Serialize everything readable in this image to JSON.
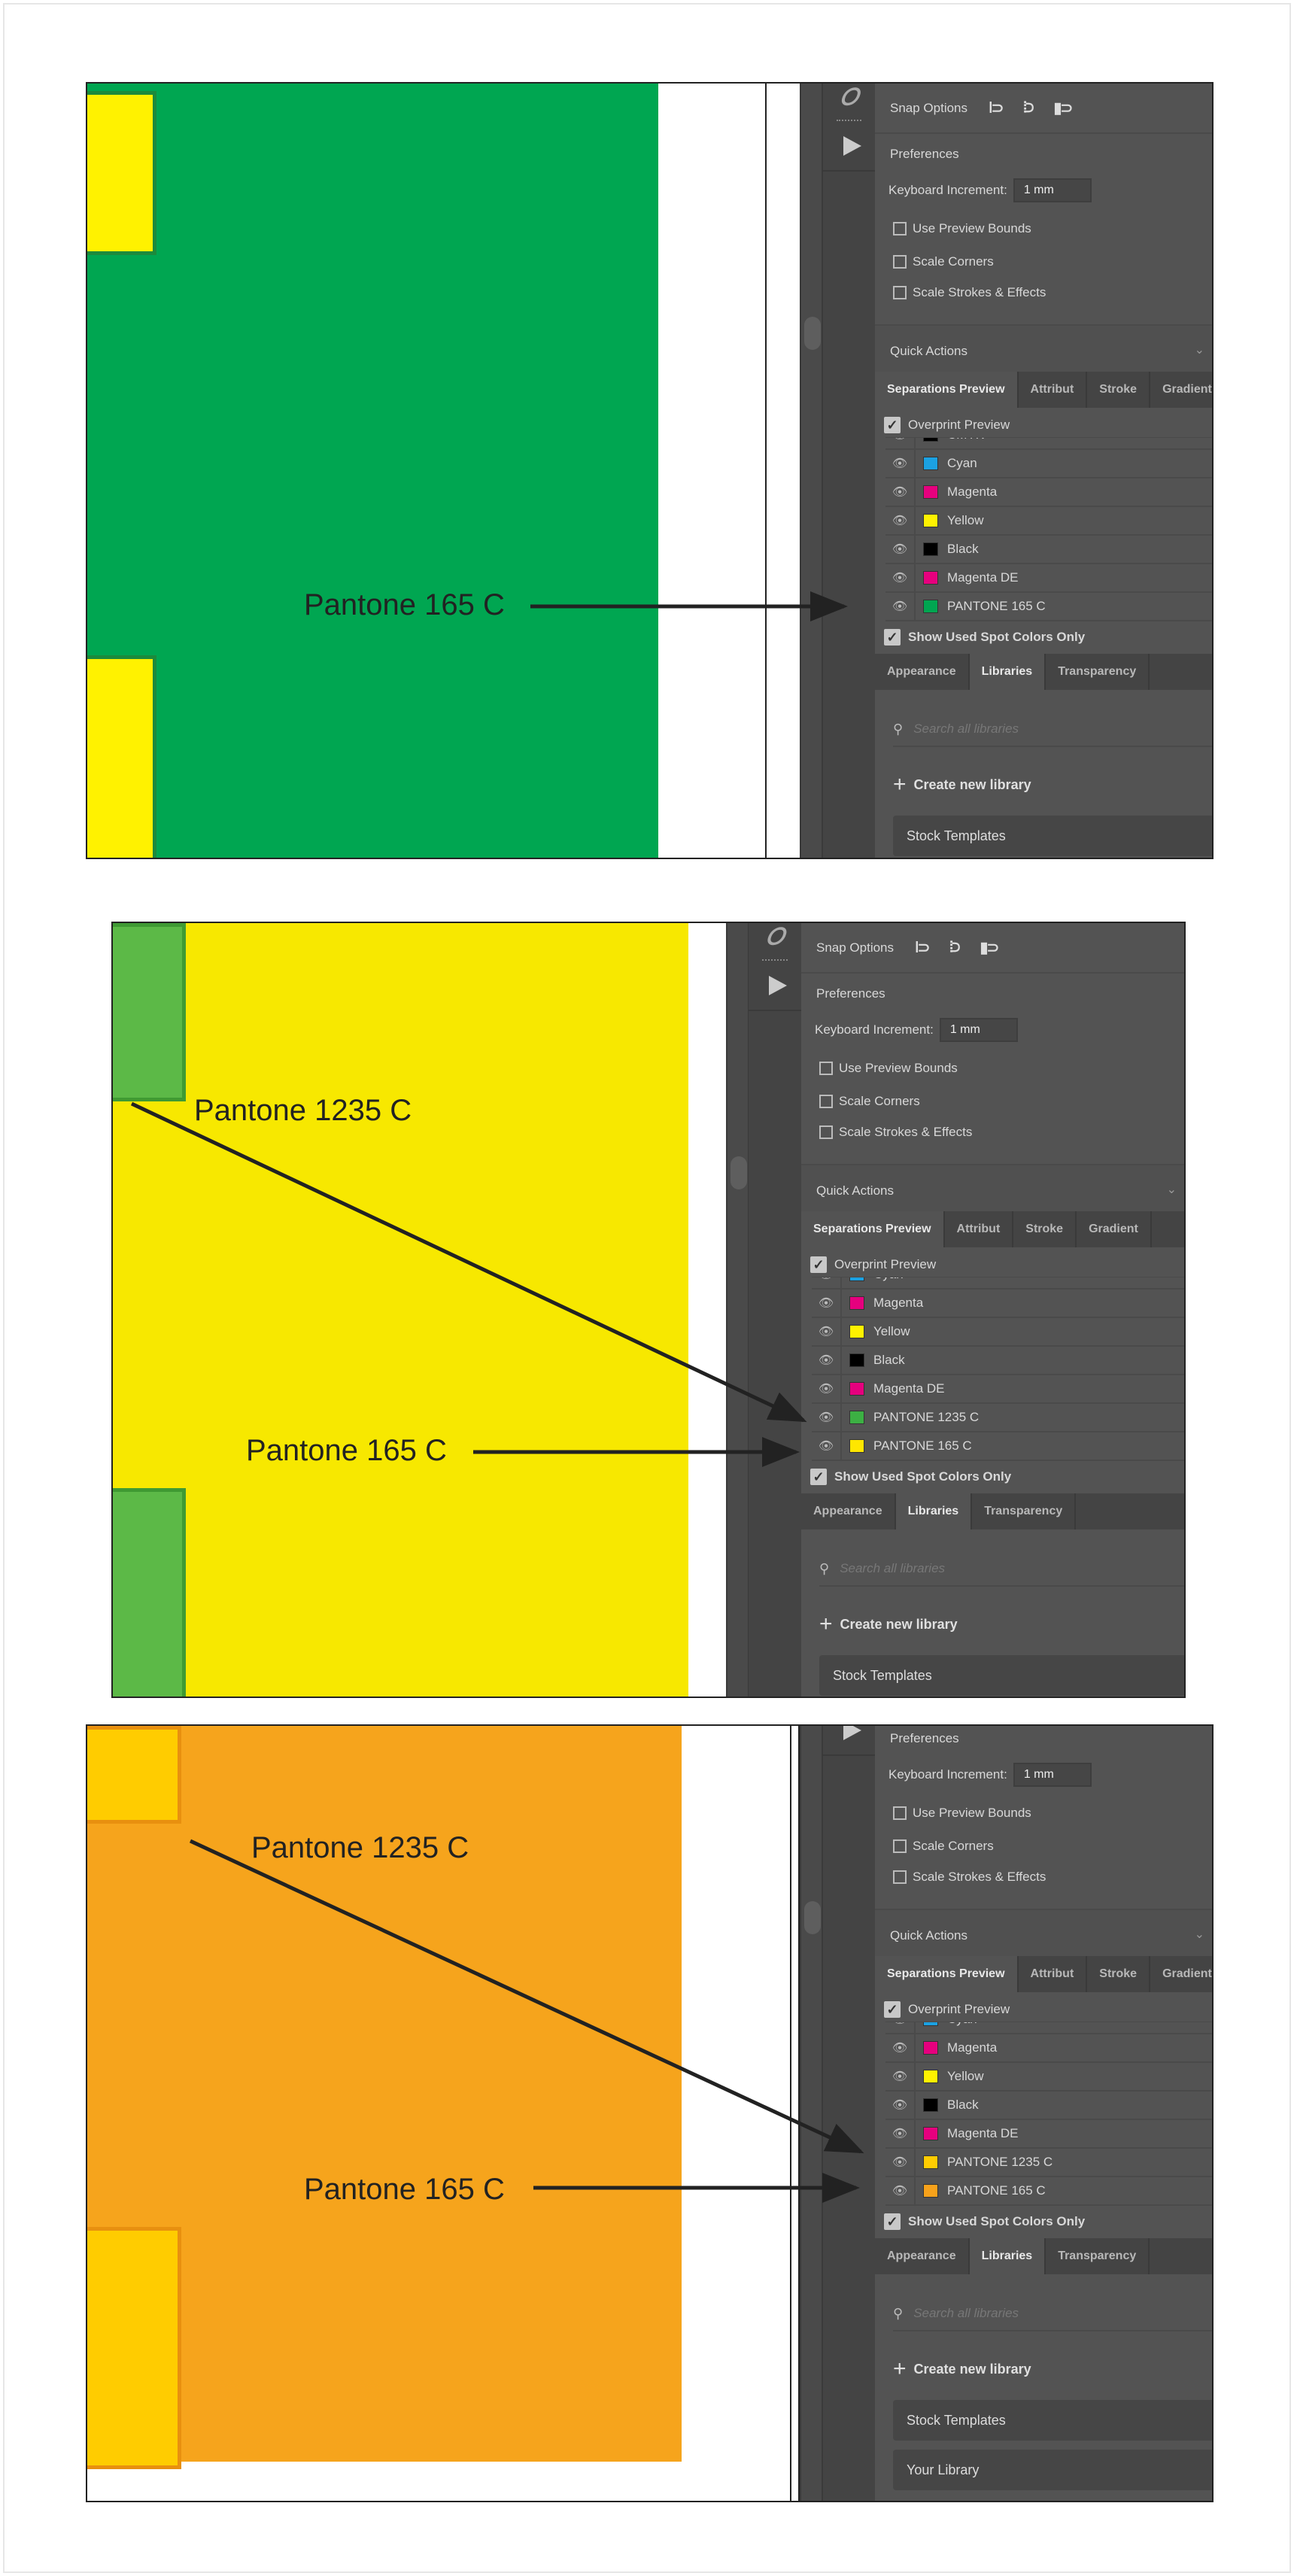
{
  "ui": {
    "snap_options": "Snap Options",
    "preferences": "Preferences",
    "keyboard_increment_label": "Keyboard Increment:",
    "keyboard_increment_value": "1 mm",
    "use_preview_bounds": "Use Preview Bounds",
    "scale_corners": "Scale Corners",
    "scale_strokes_effects": "Scale Strokes & Effects",
    "quick_actions": "Quick Actions",
    "tabs_top": [
      "Separations Preview",
      "Attribut",
      "Stroke",
      "Gradient"
    ],
    "overprint_preview": "Overprint Preview",
    "show_used_spot_colors_only": "Show Used Spot Colors Only",
    "tabs_bottom": [
      "Appearance",
      "Libraries",
      "Transparency"
    ],
    "search_placeholder": "Search all libraries",
    "create_new_library": "Create new library"
  },
  "panels": [
    {
      "artwork_color": "#00a651",
      "tab_color": "#fff200",
      "tab_border": "#1c8a3c",
      "separations": [
        {
          "name": "CMYK",
          "color": "#000000"
        },
        {
          "name": "Cyan",
          "color": "#1ba1e2"
        },
        {
          "name": "Magenta",
          "color": "#e6007e"
        },
        {
          "name": "Yellow",
          "color": "#fff200"
        },
        {
          "name": "Black",
          "color": "#000000"
        },
        {
          "name": "Magenta DE",
          "color": "#e6007e"
        },
        {
          "name": "PANTONE 165 C",
          "color": "#00a651"
        }
      ],
      "libraries": [
        "Stock Templates"
      ],
      "callouts": [
        "Pantone 165 C"
      ]
    },
    {
      "artwork_color": "#f7e800",
      "tab_color": "#5cb947",
      "tab_border": "#3f9a33",
      "separations": [
        {
          "name": "Cyan",
          "color": "#1ba1e2"
        },
        {
          "name": "Magenta",
          "color": "#e6007e"
        },
        {
          "name": "Yellow",
          "color": "#fff200"
        },
        {
          "name": "Black",
          "color": "#000000"
        },
        {
          "name": "Magenta DE",
          "color": "#e6007e"
        },
        {
          "name": "PANTONE 1235 C",
          "color": "#3cb043"
        },
        {
          "name": "PANTONE 165 C",
          "color": "#ffe600"
        }
      ],
      "libraries": [
        "Stock Templates"
      ],
      "callouts": [
        "Pantone 1235 C",
        "Pantone 165 C"
      ]
    },
    {
      "artwork_color": "#f6a41c",
      "tab_color": "#ffcc00",
      "tab_border": "#e8900f",
      "separations": [
        {
          "name": "Cyan",
          "color": "#1ba1e2"
        },
        {
          "name": "Magenta",
          "color": "#e6007e"
        },
        {
          "name": "Yellow",
          "color": "#fff200"
        },
        {
          "name": "Black",
          "color": "#000000"
        },
        {
          "name": "Magenta DE",
          "color": "#e6007e"
        },
        {
          "name": "PANTONE 1235 C",
          "color": "#ffcc00"
        },
        {
          "name": "PANTONE 165 C",
          "color": "#f7a21b"
        }
      ],
      "libraries": [
        "Stock Templates",
        "Your Library"
      ],
      "callouts": [
        "Pantone 1235 C",
        "Pantone 165 C"
      ]
    }
  ]
}
